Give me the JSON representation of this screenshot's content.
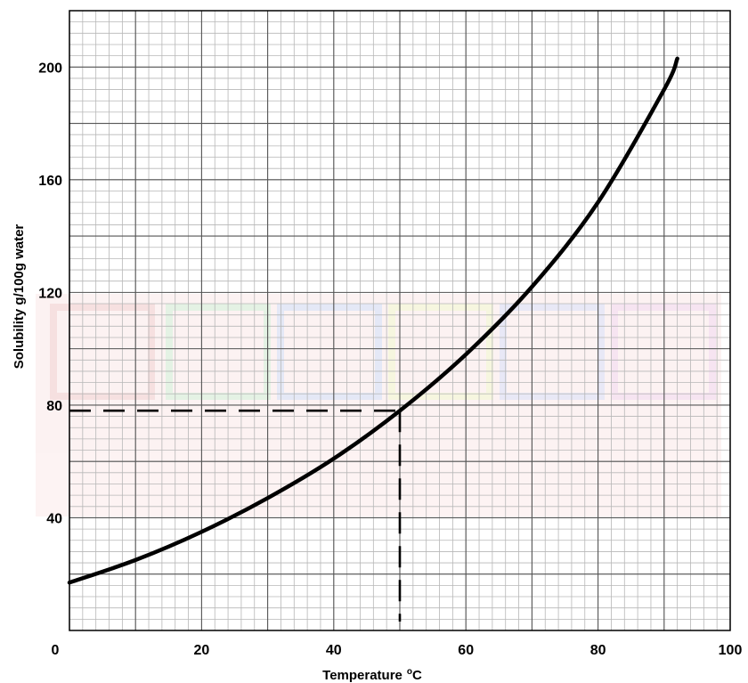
{
  "chart_data": {
    "type": "line",
    "xlabel": "Temperature",
    "xlabel_unit": "oC",
    "ylabel": "Solubility g/100g water",
    "xlim": [
      0,
      100
    ],
    "ylim": [
      0,
      220
    ],
    "x_ticks": [
      0,
      20,
      40,
      60,
      80,
      100
    ],
    "y_ticks": [
      40,
      80,
      120,
      160,
      200
    ],
    "x_tick_labels": [
      "0",
      "20",
      "40",
      "60",
      "80",
      "100"
    ],
    "y_tick_labels": [
      "40",
      "80",
      "120",
      "160",
      "200"
    ],
    "grid": true,
    "series": [
      {
        "x": [
          0,
          10,
          20,
          30,
          40,
          50,
          60,
          70,
          80,
          90,
          92
        ],
        "y": [
          17,
          25,
          35,
          47,
          61,
          78,
          98,
          122,
          152,
          192,
          203
        ],
        "color": "#000000"
      }
    ],
    "reference_point": {
      "x": 50,
      "y": 78
    },
    "colors": {
      "grid_major": "#555555",
      "grid_minor": "#b7b7b7",
      "curve": "#000000",
      "watermark": "#f3d6d6"
    }
  }
}
